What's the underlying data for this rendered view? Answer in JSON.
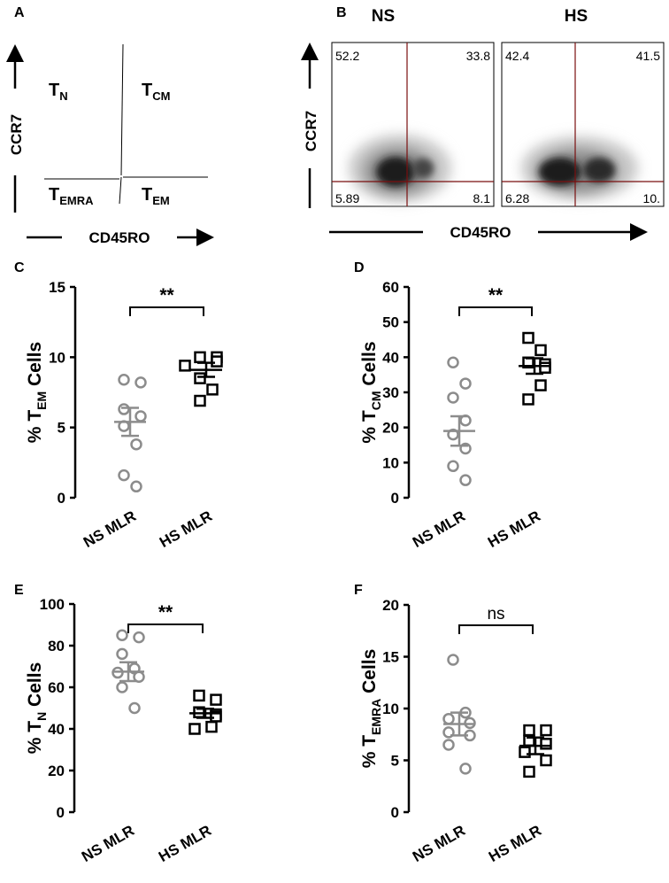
{
  "panel_labels": [
    "A",
    "B",
    "C",
    "D",
    "E",
    "F"
  ],
  "panel_a": {
    "y_axis": "CCR7",
    "x_axis": "CD45RO",
    "quadrants": {
      "tn": {
        "main": "T",
        "sub": "N"
      },
      "tcm": {
        "main": "T",
        "sub": "CM"
      },
      "temra": {
        "main": "T",
        "sub": "EMRA"
      },
      "tem": {
        "main": "T",
        "sub": "EM"
      }
    }
  },
  "panel_b": {
    "y_axis": "CCR7",
    "x_axis": "CD45RO",
    "plots": [
      {
        "title": "NS",
        "q_ul": "52.2",
        "q_ur": "33.8",
        "q_ll": "5.89",
        "q_lr": "8.1"
      },
      {
        "title": "HS",
        "q_ul": "42.4",
        "q_ur": "41.5",
        "q_ll": "6.28",
        "q_lr": "10."
      }
    ]
  },
  "chart_data": [
    {
      "panel": "C",
      "type": "scatter",
      "ylabel": "% T_EM Cells",
      "ylabel_main": "% T",
      "ylabel_sub": "EM",
      "ylabel_tail": " Cells",
      "ylim": [
        0,
        15
      ],
      "yticks": [
        0,
        5,
        10,
        15
      ],
      "categories": [
        "NS MLR",
        "HS MLR"
      ],
      "significance": "**",
      "series": [
        {
          "values": [
            8.4,
            8.2,
            6.3,
            5.8,
            5.1,
            3.8,
            1.6,
            0.8
          ],
          "mean": 5.4,
          "sem_low": 4.4,
          "sem_high": 6.4
        },
        {
          "values": [
            10.0,
            10.0,
            9.7,
            9.4,
            8.5,
            7.7,
            6.9
          ],
          "mean": 9.1,
          "sem_low": 8.6,
          "sem_high": 9.6
        }
      ]
    },
    {
      "panel": "D",
      "type": "scatter",
      "ylabel": "% T_CM Cells",
      "ylabel_main": "% T",
      "ylabel_sub": "CM",
      "ylabel_tail": " Cells",
      "ylim": [
        0,
        60
      ],
      "yticks": [
        0,
        10,
        20,
        30,
        40,
        50,
        60
      ],
      "categories": [
        "NS MLR",
        "HS MLR"
      ],
      "significance": "**",
      "series": [
        {
          "values": [
            38.5,
            32.5,
            28.5,
            22.0,
            18.0,
            14.0,
            9.0,
            5.0
          ],
          "mean": 19.0,
          "sem_low": 14.8,
          "sem_high": 23.2
        },
        {
          "values": [
            45.5,
            42.0,
            38.5,
            38.0,
            37.0,
            32.0,
            28.0
          ],
          "mean": 37.5,
          "sem_low": 35.3,
          "sem_high": 39.7
        }
      ]
    },
    {
      "panel": "E",
      "type": "scatter",
      "ylabel": "% T_N Cells",
      "ylabel_main": "% T",
      "ylabel_sub": "N",
      "ylabel_tail": " Cells",
      "ylim": [
        0,
        100
      ],
      "yticks": [
        0,
        20,
        40,
        60,
        80,
        100
      ],
      "categories": [
        "NS MLR",
        "HS MLR"
      ],
      "significance": "**",
      "series": [
        {
          "values": [
            85,
            84,
            76,
            69,
            67,
            65,
            60,
            50
          ],
          "mean": 67.5,
          "sem_low": 63.0,
          "sem_high": 72.0
        },
        {
          "values": [
            56,
            54,
            48,
            47,
            46,
            41,
            40
          ],
          "mean": 47.5,
          "sem_low": 45.3,
          "sem_high": 49.7
        }
      ]
    },
    {
      "panel": "F",
      "type": "scatter",
      "ylabel": "% T_EMRA Cells",
      "ylabel_main": "% T",
      "ylabel_sub": "EMRA",
      "ylabel_tail": " Cells",
      "ylim": [
        0,
        20
      ],
      "yticks": [
        0,
        5,
        10,
        15,
        20
      ],
      "categories": [
        "NS MLR",
        "HS MLR"
      ],
      "significance": "ns",
      "series": [
        {
          "values": [
            14.7,
            9.6,
            9.0,
            8.6,
            7.7,
            7.4,
            6.5,
            4.2
          ],
          "mean": 8.5,
          "sem_low": 7.4,
          "sem_high": 9.6
        },
        {
          "values": [
            7.9,
            7.9,
            6.9,
            6.6,
            5.8,
            5.0,
            3.9
          ],
          "mean": 6.4,
          "sem_low": 5.6,
          "sem_high": 7.2
        }
      ]
    }
  ]
}
